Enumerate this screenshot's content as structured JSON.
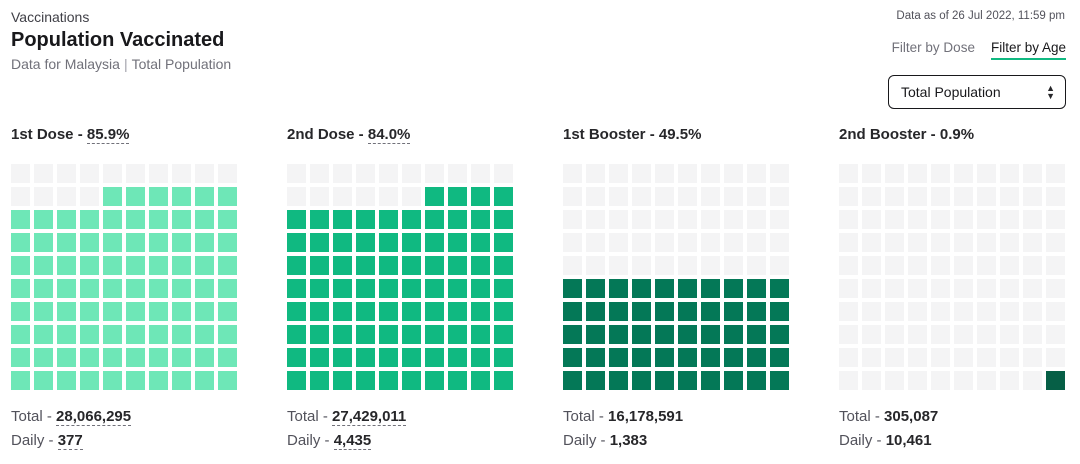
{
  "header": {
    "eyebrow": "Vaccinations",
    "title": "Population Vaccinated",
    "subtitle_left": "Data for Malaysia",
    "subtitle_sep": "|",
    "subtitle_right": "Total Population",
    "as_of": "Data as of 26 Jul 2022, 11:59 pm"
  },
  "filters": {
    "by_dose": "Filter by Dose",
    "by_age": "Filter by Age",
    "active": "by_age"
  },
  "select": {
    "value": "Total Population"
  },
  "panels": [
    {
      "label": "1st Dose",
      "pct": "85.9%",
      "fraction": 0.859,
      "color": "#6ee7b7",
      "total_label": "Total",
      "total": "28,066,295",
      "daily_label": "Daily",
      "daily": "377"
    },
    {
      "label": "2nd Dose",
      "pct": "84.0%",
      "fraction": 0.84,
      "color": "#10b981",
      "total_label": "Total",
      "total": "27,429,011",
      "daily_label": "Daily",
      "daily": "4,435"
    },
    {
      "label": "1st Booster",
      "pct": "49.5%",
      "fraction": 0.495,
      "color": "#047857",
      "total_label": "Total",
      "total": "16,178,591",
      "daily_label": "Daily",
      "daily": "1,383"
    },
    {
      "label": "2nd Booster",
      "pct": "0.9%",
      "fraction": 0.009,
      "color": "#065f46",
      "total_label": "Total",
      "total": "305,087",
      "daily_label": "Daily",
      "daily": "10,461"
    }
  ],
  "colors": {
    "empty_cell": "#f4f4f5",
    "accent": "#10b981"
  }
}
